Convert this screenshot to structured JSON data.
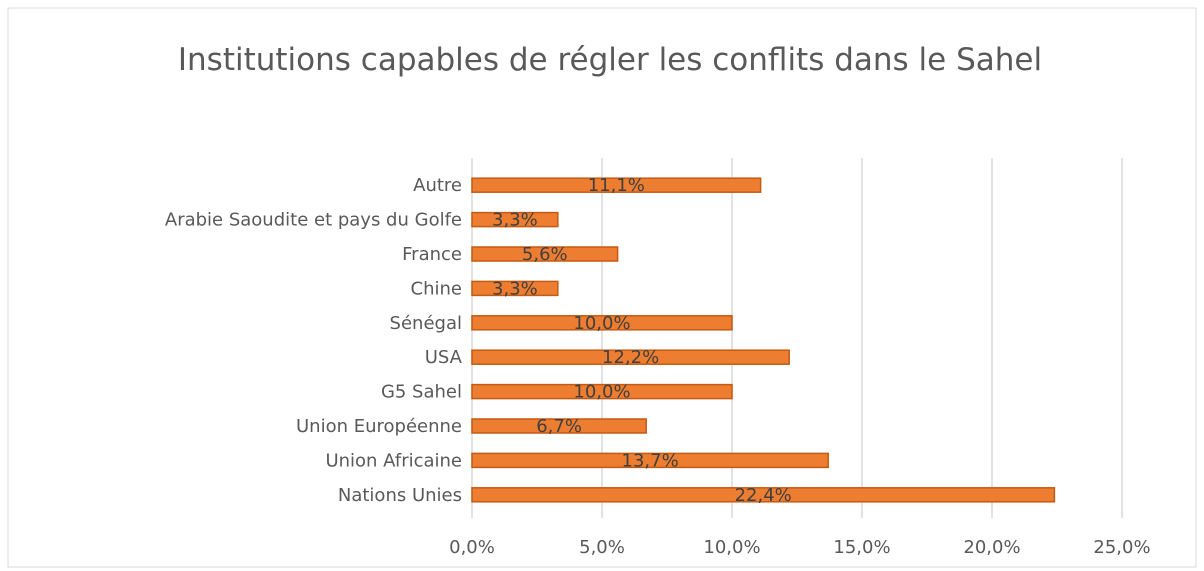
{
  "chart_data": {
    "type": "bar",
    "orientation": "horizontal",
    "title": "Institutions capables de régler les conflits dans le Sahel",
    "categories": [
      "Autre",
      "Arabie Saoudite et pays du Golfe",
      "France",
      "Chine",
      "Sénégal",
      "USA",
      "G5 Sahel",
      "Union Européenne",
      "Union Africaine",
      "Nations Unies"
    ],
    "values": [
      11.1,
      3.3,
      5.6,
      3.3,
      10.0,
      12.2,
      10.0,
      6.7,
      13.7,
      22.4
    ],
    "value_labels": [
      "11,1%",
      "3,3%",
      "5,6%",
      "3,3%",
      "10,0%",
      "12,2%",
      "10,0%",
      "6,7%",
      "13,7%",
      "22,4%"
    ],
    "color": "#ed7d31",
    "xlim": [
      0,
      25
    ],
    "xticks": [
      {
        "value": 0,
        "label": "0,0%"
      },
      {
        "value": 5,
        "label": "5,0%"
      },
      {
        "value": 10,
        "label": "10,0%"
      },
      {
        "value": 15,
        "label": "15,0%"
      },
      {
        "value": 20,
        "label": "20,0%"
      },
      {
        "value": 25,
        "label": "25,0%"
      }
    ],
    "grid": true
  }
}
